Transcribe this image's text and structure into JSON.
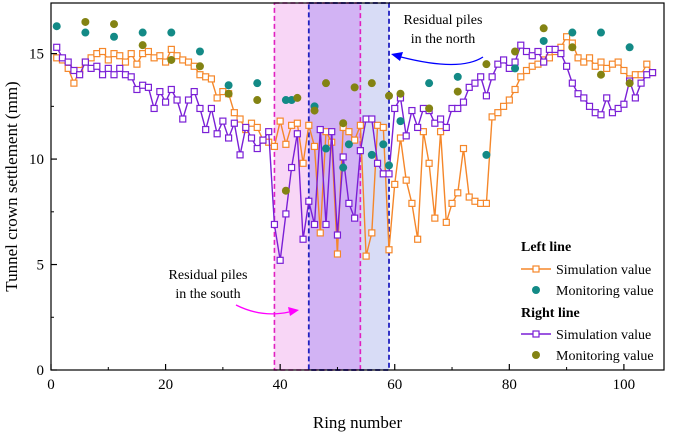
{
  "chart_data": {
    "type": "line",
    "xlabel": "Ring number",
    "ylabel": "Tunnel crown settlement (mm)",
    "xlim": [
      0,
      107
    ],
    "ylim": [
      0,
      17.4
    ],
    "xticks": [
      0,
      20,
      40,
      60,
      80,
      100
    ],
    "yticks": [
      0,
      5,
      10,
      15
    ],
    "colors": {
      "left_sim": "#f5872a",
      "left_mon": "#138a86",
      "right_sim": "#7a1fd6",
      "right_mon": "#838313",
      "south_zone_fill": "#f8d6f6",
      "south_zone_border": "#e020c0",
      "north_zone_fill": "#bdbbf0",
      "north_zone_border": "#2020c0",
      "annotation_south": "#ff00ff",
      "annotation_north": "#0000ff"
    },
    "left_simulation": {
      "x": [
        1,
        2,
        3,
        4,
        5,
        6,
        7,
        8,
        9,
        10,
        11,
        12,
        13,
        14,
        15,
        16,
        17,
        18,
        19,
        20,
        21,
        22,
        23,
        24,
        25,
        26,
        27,
        28,
        29,
        30,
        31,
        32,
        33,
        34,
        35,
        36,
        37,
        38,
        39,
        40,
        41,
        42,
        43,
        44,
        45,
        46,
        47,
        48,
        49,
        50,
        51,
        52,
        53,
        54,
        55,
        56,
        57,
        58,
        59,
        60,
        61,
        62,
        63,
        64,
        65,
        66,
        67,
        68,
        69,
        70,
        71,
        72,
        73,
        74,
        75,
        76,
        77,
        78,
        79,
        80,
        81,
        82,
        83,
        84,
        85,
        86,
        87,
        88,
        89,
        90,
        91,
        92,
        93,
        94,
        95,
        96,
        97,
        98,
        99,
        100,
        101,
        102,
        103,
        104,
        105
      ],
      "y": [
        14.8,
        14.7,
        14.3,
        13.6,
        14.2,
        14.6,
        14.8,
        15.0,
        15.1,
        14.7,
        15.0,
        14.9,
        14.6,
        15.0,
        14.5,
        15.0,
        15.1,
        14.8,
        14.9,
        14.6,
        15.2,
        14.9,
        14.7,
        14.6,
        14.4,
        14.0,
        13.9,
        13.8,
        12.9,
        13.2,
        13.1,
        12.2,
        11.9,
        11.4,
        11.7,
        11.5,
        10.9,
        10.8,
        10.6,
        11.8,
        10.7,
        11.6,
        11.7,
        10.9,
        11.6,
        10.6,
        11.7,
        11.3,
        10.8,
        10.9,
        11.5,
        11.3,
        10.9,
        11.6,
        11.2,
        10.8,
        11.6,
        11.5,
        11.3,
        10.6,
        11.0,
        9.0,
        7.9,
        11.0,
        11.3,
        9.8,
        7.2,
        11.3,
        11.0,
        7.9,
        11.5,
        10.5,
        8.2,
        11.6,
        11.8,
        7.9,
        12.0,
        12.2,
        12.5,
        12.8,
        13.3,
        13.9,
        14.2,
        14.4,
        14.5,
        14.7,
        14.8,
        15.1,
        15.3,
        15.8,
        15.5,
        14.8,
        14.6,
        14.8,
        14.4,
        14.6,
        14.3,
        14.5,
        14.6,
        14.2,
        13.8,
        14.0,
        14.0,
        14.5,
        14.1
      ],
      "dips": [
        [
          44,
          9.8
        ],
        [
          47,
          6.5
        ],
        [
          50,
          5.5
        ],
        [
          55,
          5.4
        ],
        [
          56,
          6.5
        ],
        [
          59,
          5.7
        ],
        [
          60,
          8.8
        ],
        [
          64,
          6.2
        ],
        [
          69,
          7.0
        ],
        [
          71,
          8.4
        ],
        [
          74,
          8.0
        ],
        [
          75,
          7.9
        ]
      ]
    },
    "left_monitoring": {
      "x": [
        1,
        6,
        11,
        16,
        21,
        26,
        31,
        36,
        41,
        46,
        51,
        56,
        61,
        66,
        71,
        76,
        81,
        86,
        91,
        96,
        101
      ],
      "y": [
        16.3,
        16.0,
        15.8,
        16.0,
        16.0,
        15.1,
        13.5,
        13.6,
        12.8,
        12.5,
        9.6,
        10.2,
        11.8,
        13.6,
        13.9,
        10.2,
        14.3,
        15.6,
        16.0,
        16.0,
        15.3
      ]
    },
    "right_simulation": {
      "x": [
        1,
        2,
        3,
        4,
        5,
        6,
        7,
        8,
        9,
        10,
        11,
        12,
        13,
        14,
        15,
        16,
        17,
        18,
        19,
        20,
        21,
        22,
        23,
        24,
        25,
        26,
        27,
        28,
        29,
        30,
        31,
        32,
        33,
        34,
        35,
        36,
        37,
        38,
        39,
        40,
        41,
        42,
        43,
        44,
        45,
        46,
        47,
        48,
        49,
        50,
        51,
        52,
        53,
        54,
        55,
        56,
        57,
        58,
        59,
        60,
        61,
        62,
        63,
        64,
        65,
        66,
        67,
        68,
        69,
        70,
        71,
        72,
        73,
        74,
        75,
        76,
        77,
        78,
        79,
        80,
        81,
        82,
        83,
        84,
        85,
        86,
        87,
        88,
        89,
        90,
        91,
        92,
        93,
        94,
        95,
        96,
        97,
        98,
        99,
        100,
        101,
        102,
        103,
        104,
        105
      ],
      "y": [
        15.3,
        14.8,
        14.6,
        14.2,
        14.0,
        14.6,
        14.3,
        14.4,
        14.0,
        14.3,
        14.0,
        14.3,
        14.0,
        13.9,
        13.3,
        13.5,
        13.4,
        12.4,
        13.2,
        12.7,
        13.3,
        12.8,
        11.9,
        12.8,
        13.2,
        12.4,
        11.4,
        12.4,
        11.2,
        11.8,
        11.0,
        11.7,
        10.2,
        11.5,
        11.0,
        10.5,
        10.9,
        11.3,
        6.9,
        5.2,
        7.4,
        9.6,
        11.2,
        6.2,
        11.9,
        9.0,
        11.4,
        8.2,
        11.3,
        6.4,
        10.1,
        10.0,
        9.3,
        10.4,
        11.9,
        11.9,
        9.9,
        11.8,
        9.3,
        12.4,
        12.9,
        11.1,
        12.3,
        11.5,
        12.4,
        12.3,
        11.7,
        11.9,
        11.5,
        12.4,
        12.4,
        12.7,
        13.4,
        13.6,
        13.9,
        13.0,
        13.9,
        14.5,
        14.7,
        14.3,
        14.6,
        15.4,
        15.1,
        14.9,
        15.1,
        14.6,
        15.2,
        15.2,
        15.0,
        14.4,
        13.6,
        13.1,
        12.9,
        12.5,
        12.2,
        12.1,
        12.9,
        12.2,
        12.4,
        12.6,
        13.7,
        12.9,
        13.6,
        14.0,
        14.1
      ],
      "dips": [
        [
          45,
          8.0
        ],
        [
          46,
          6.9
        ],
        [
          48,
          6.9
        ],
        [
          50,
          6.4
        ],
        [
          52,
          7.9
        ],
        [
          53,
          7.2
        ],
        [
          57,
          9.8
        ],
        [
          58,
          9.3
        ]
      ]
    },
    "right_monitoring": {
      "x": [
        6,
        11,
        16,
        21,
        26,
        31,
        36,
        41,
        46,
        51,
        56,
        61,
        66,
        71,
        76,
        81,
        86,
        91,
        96,
        101
      ],
      "y": [
        16.5,
        16.4,
        15.4,
        14.7,
        14.4,
        13.1,
        12.8,
        8.5,
        12.3,
        11.7,
        13.6,
        13.1,
        12.4,
        13.2,
        14.5,
        15.1,
        16.2,
        15.3,
        14.0,
        13.6
      ]
    },
    "extra_right_monitoring": {
      "x": [
        43,
        48,
        53,
        59
      ],
      "y": [
        12.9,
        13.6,
        13.4,
        13.0
      ]
    },
    "extra_left_monitoring": {
      "x": [
        42,
        48,
        52,
        58,
        59
      ],
      "y": [
        12.8,
        10.5,
        10.7,
        10.7,
        9.7
      ]
    },
    "zones": [
      {
        "name": "south",
        "x0": 39.0,
        "x1": 54.0
      },
      {
        "name": "north",
        "x0": 45.0,
        "x1": 59.0
      }
    ],
    "annotations": {
      "north_line1": "Residual piles",
      "north_line2": "in the north",
      "south_line1": "Residual piles",
      "south_line2": "in the south"
    },
    "legend": {
      "left_title": "Left line",
      "right_title": "Right line",
      "sim_label": "Simulation value",
      "mon_label": "Monitoring value"
    }
  }
}
